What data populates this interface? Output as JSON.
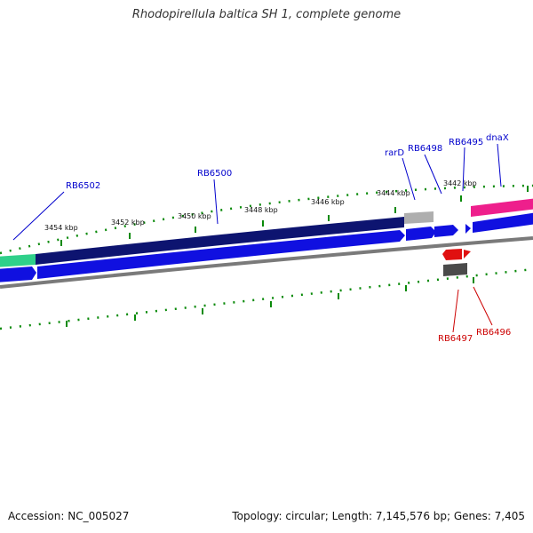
{
  "title": "Rhodopirellula baltica SH 1, complete genome",
  "footer": {
    "accession": "Accession: NC_005027",
    "summary": "Topology: circular; Length: 7,145,576 bp; Genes: 7,405"
  },
  "ruler_labels": [
    "3454 kbp",
    "3452 kbp",
    "3450 kbp",
    "3448 kbp",
    "3446 kbp",
    "3444 kbp",
    "3442 kbp"
  ],
  "gene_labels_forward": [
    "RB6502",
    "RB6500",
    "rarD",
    "RB6498",
    "RB6495",
    "dnaX"
  ],
  "gene_labels_reverse": [
    "RB6497",
    "RB6496"
  ],
  "colors": {
    "forward_label": "#0000cc",
    "reverse_label": "#cc0000",
    "tick": "#0a8a0a",
    "cds_dark": "#0d1470",
    "cds_blue": "#1010e0",
    "teal": "#2fd08a",
    "magenta": "#ee1f8c",
    "red_gene": "#e01010",
    "backbone": "#7a7a7a"
  }
}
